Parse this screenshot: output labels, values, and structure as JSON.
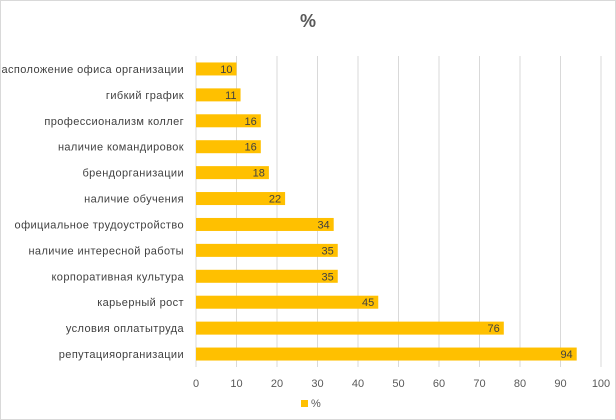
{
  "chart_data": {
    "type": "bar",
    "orientation": "horizontal",
    "title": "%",
    "categories": [
      "расположение офиса организации",
      "гибкий график",
      "профессионализм коллег",
      "наличие командировок",
      "брендорганизации",
      "наличие обучения",
      "официальное трудоустройство",
      "наличие интересной работы",
      "корпоративная культура",
      "карьерный рост",
      "условия оплатытруда",
      "репутацияорганизации"
    ],
    "series": [
      {
        "name": "%",
        "color": "#FFC000",
        "values": [
          10,
          11,
          16,
          16,
          18,
          22,
          34,
          35,
          35,
          45,
          76,
          94
        ]
      }
    ],
    "xlim": [
      0,
      100
    ],
    "xticks": [
      0,
      10,
      20,
      30,
      40,
      50,
      60,
      70,
      80,
      90,
      100
    ],
    "grid": true,
    "data_labels": true,
    "legend": {
      "position": "bottom",
      "entries": [
        "%"
      ]
    }
  }
}
